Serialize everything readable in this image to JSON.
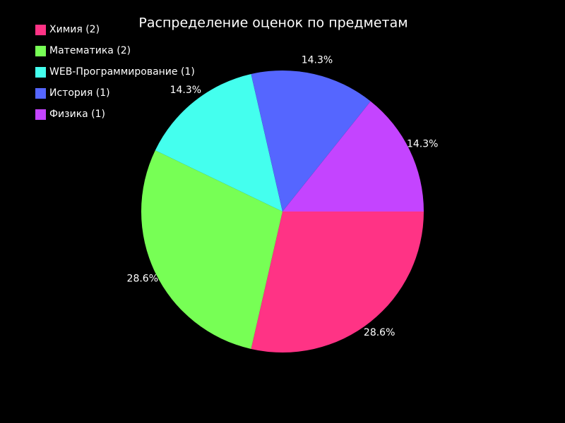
{
  "chart_data": {
    "type": "pie",
    "title": "Распределение оценок по предметам",
    "categories": [
      "Химия (2)",
      "Математика (2)",
      "WEB-Программирование (1)",
      "История (1)",
      "Физика (1)"
    ],
    "values": [
      28.6,
      28.6,
      14.3,
      14.3,
      14.3
    ],
    "value_labels": [
      "28.6%",
      "28.6%",
      "14.3%",
      "14.3%",
      "14.3%"
    ],
    "colors": [
      "#ff3385",
      "#77ff55",
      "#44ffee",
      "#5566ff",
      "#c444ff"
    ],
    "legend": "upper left"
  }
}
